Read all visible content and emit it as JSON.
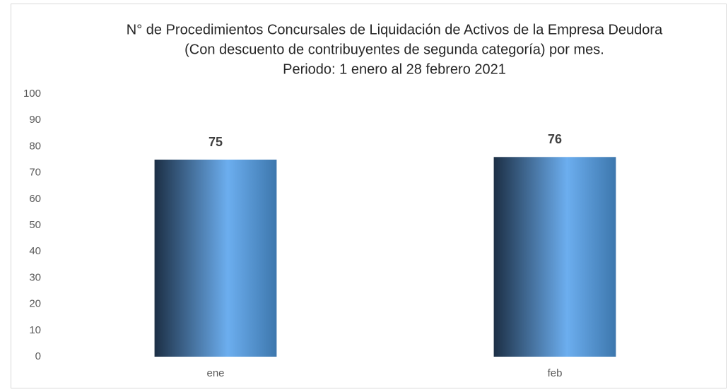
{
  "chart_data": {
    "type": "bar",
    "title": [
      "N° de Procedimientos Concursales de Liquidación de Activos de la Empresa Deudora",
      "(Con descuento de contribuyentes de segunda categoría) por mes.",
      "Periodo: 1 enero al 28 febrero 2021"
    ],
    "categories": [
      "ene",
      "feb"
    ],
    "values": [
      75,
      76
    ],
    "gradient": [
      "#1c2f45",
      "#6caeef",
      "#3d77ad"
    ],
    "ylim": [
      0,
      100
    ],
    "yticks": [
      0,
      10,
      20,
      30,
      40,
      50,
      60,
      70,
      80,
      90,
      100
    ],
    "grid": false
  }
}
